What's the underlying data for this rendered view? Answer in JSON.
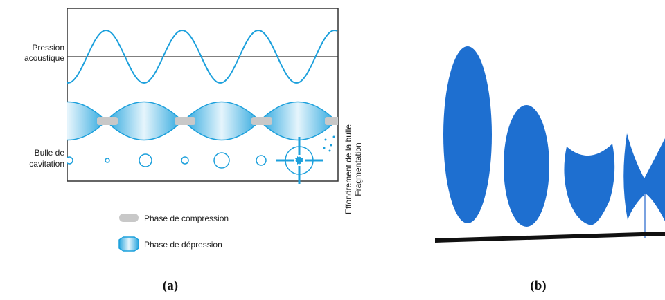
{
  "panel_a": {
    "pressure_label": [
      "Pression",
      "acoustique"
    ],
    "bubble_label": [
      "Bulle de",
      "cavitation"
    ],
    "collapse_label": "Effondrement de la bulle",
    "fragmentation_label": "Fragmentation",
    "legend": [
      "Phase de compression",
      "Phase de dépression"
    ],
    "caption": "(a)"
  },
  "panel_b": {
    "caption": "(b)"
  }
}
